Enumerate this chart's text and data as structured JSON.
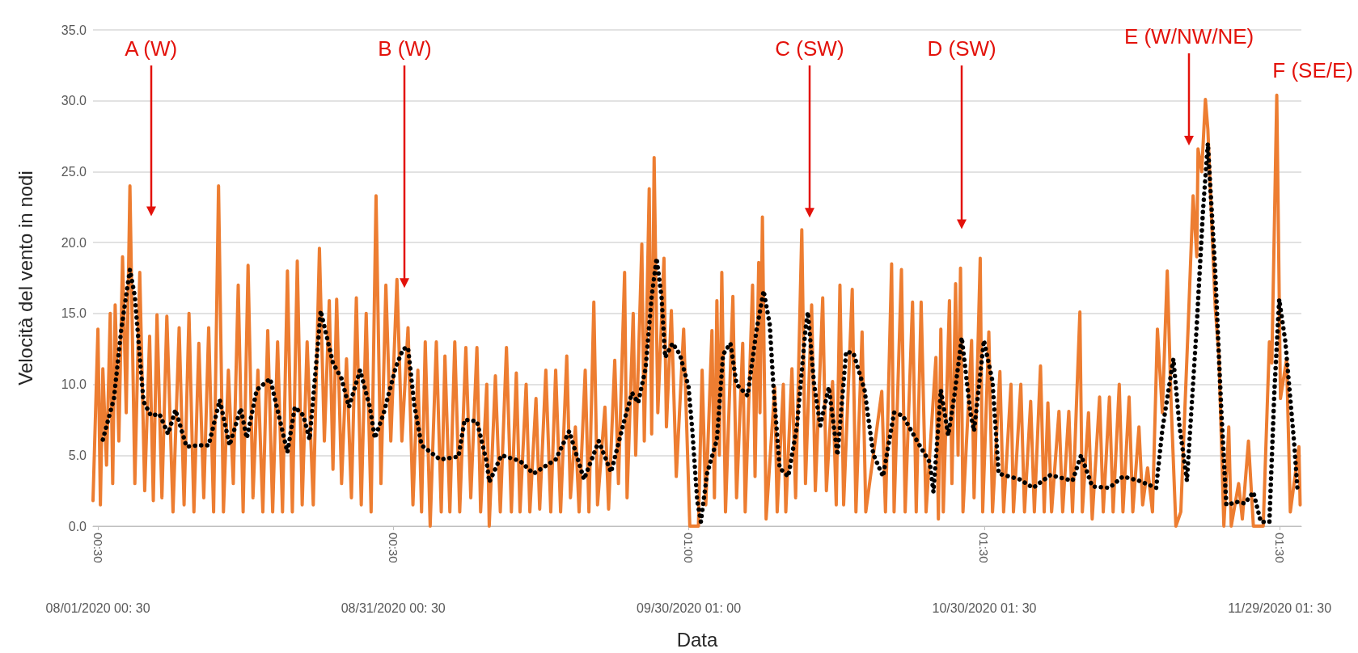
{
  "chart_data": {
    "type": "line",
    "xlabel": "Data",
    "ylabel": "Velocità del vento in nodi",
    "xlim": [
      "2020-07-31T12:30",
      "2020-12-01T06:30"
    ],
    "xticks": [
      {
        "value": "2020-08-01T00:30",
        "label": "00:30"
      },
      {
        "value": "2020-08-31T00:30",
        "label": "00:30"
      },
      {
        "value": "2020-09-30T01:00",
        "label": "01:00"
      },
      {
        "value": "2020-10-30T01:30",
        "label": "01:30"
      },
      {
        "value": "2020-11-29T01:30",
        "label": "01:30"
      }
    ],
    "x2lim": [
      "2020-07-31T12:30",
      "2020-12-01T06:30"
    ],
    "x2ticks": [
      {
        "value": "2020-08-01T00:30",
        "label": "08/01/2020 00: 30"
      },
      {
        "value": "2020-08-31T00:30",
        "label": "08/31/2020 00: 30"
      },
      {
        "value": "2020-09-30T01:00",
        "label": "09/30/2020 01: 00"
      },
      {
        "value": "2020-10-30T01:30",
        "label": "10/30/2020 01: 30"
      },
      {
        "value": "2020-11-29T01:30",
        "label": "11/29/2020 01: 30"
      }
    ],
    "ylim": [
      0,
      35
    ],
    "yticks": [
      {
        "value": 0,
        "label": "0.0"
      },
      {
        "value": 5,
        "label": "5.0"
      },
      {
        "value": 10,
        "label": "10.0"
      },
      {
        "value": 15,
        "label": "15.0"
      },
      {
        "value": 20,
        "label": "20.0"
      },
      {
        "value": 25,
        "label": "25.0"
      },
      {
        "value": 30,
        "label": "30.0"
      },
      {
        "value": 35,
        "label": "35.0"
      }
    ],
    "grid": "y",
    "marker": "none",
    "annotations": [
      "A (W)",
      "B (W)",
      "C (SW)",
      "D (SW)",
      "E (W/NW/NE)",
      "F (SE/E)"
    ],
    "series": [
      {
        "color": "#ed7d31",
        "line_style": "solid",
        "x": [
          "2020-07-31T12:30",
          "2020-08-01T00:30",
          "2020-08-01T06:30",
          "2020-08-01T12:30",
          "2020-08-01T21:30",
          "2020-08-02T06:30",
          "2020-08-02T12:30",
          "2020-08-02T18:30",
          "2020-08-03T03:30",
          "2020-08-03T12:30",
          "2020-08-03T21:30",
          "2020-08-04T06:30",
          "2020-08-04T18:30",
          "2020-08-05T06:30",
          "2020-08-05T18:30",
          "2020-08-06T06:30",
          "2020-08-06T15:30",
          "2020-08-07T00:30",
          "2020-08-07T12:30",
          "2020-08-08T00:30",
          "2020-08-08T15:30",
          "2020-08-09T06:30",
          "2020-08-09T18:30",
          "2020-08-10T06:30",
          "2020-08-10T18:30",
          "2020-08-11T06:30",
          "2020-08-11T18:30",
          "2020-08-12T06:30",
          "2020-08-12T18:30",
          "2020-08-13T06:30",
          "2020-08-13T18:30",
          "2020-08-14T06:30",
          "2020-08-14T18:30",
          "2020-08-15T06:30",
          "2020-08-15T18:30",
          "2020-08-16T06:30",
          "2020-08-16T18:30",
          "2020-08-17T06:30",
          "2020-08-17T18:30",
          "2020-08-18T06:30",
          "2020-08-18T18:30",
          "2020-08-19T06:30",
          "2020-08-19T18:30",
          "2020-08-20T06:30",
          "2020-08-20T18:30",
          "2020-08-21T06:30",
          "2020-08-21T18:30",
          "2020-08-22T06:30",
          "2020-08-22T21:30",
          "2020-08-23T12:30",
          "2020-08-24T00:30",
          "2020-08-24T12:30",
          "2020-08-24T21:30",
          "2020-08-25T06:30",
          "2020-08-25T18:30",
          "2020-08-26T06:30",
          "2020-08-26T18:30",
          "2020-08-27T06:30",
          "2020-08-27T18:30",
          "2020-08-28T06:30",
          "2020-08-28T18:30",
          "2020-08-29T06:30",
          "2020-08-29T18:30",
          "2020-08-30T06:30",
          "2020-08-30T18:30",
          "2020-08-31T09:30",
          "2020-08-31T21:30",
          "2020-09-01T12:30",
          "2020-09-02T00:30",
          "2020-09-02T12:30",
          "2020-09-02T21:30",
          "2020-09-03T06:30",
          "2020-09-03T18:30",
          "2020-09-04T09:30",
          "2020-09-04T21:30",
          "2020-09-05T06:30",
          "2020-09-05T18:30",
          "2020-09-06T06:30",
          "2020-09-06T18:30",
          "2020-09-07T09:30",
          "2020-09-07T21:30",
          "2020-09-08T12:30",
          "2020-09-08T21:30",
          "2020-09-09T12:30",
          "2020-09-09T18:30",
          "2020-09-10T09:30",
          "2020-09-10T21:30",
          "2020-09-11T12:30",
          "2020-09-12T00:30",
          "2020-09-12T12:30",
          "2020-09-12T21:30",
          "2020-09-13T12:30",
          "2020-09-13T21:30",
          "2020-09-14T12:30",
          "2020-09-14T21:30",
          "2020-09-15T12:30",
          "2020-09-16T00:30",
          "2020-09-16T12:30",
          "2020-09-17T00:30",
          "2020-09-17T15:30",
          "2020-09-18T00:30",
          "2020-09-18T12:30",
          "2020-09-18T21:30",
          "2020-09-19T12:30",
          "2020-09-19T21:30",
          "2020-09-20T09:30",
          "2020-09-20T18:30",
          "2020-09-21T12:30",
          "2020-09-21T21:30",
          "2020-09-22T12:30",
          "2020-09-22T21:30",
          "2020-09-23T12:30",
          "2020-09-23T18:30",
          "2020-09-24T09:30",
          "2020-09-24T15:30",
          "2020-09-25T06:30",
          "2020-09-25T12:30",
          "2020-09-26T00:30",
          "2020-09-26T06:30",
          "2020-09-26T12:30",
          "2020-09-26T21:30",
          "2020-09-27T12:30",
          "2020-09-27T18:30",
          "2020-09-28T06:30",
          "2020-09-28T18:30",
          "2020-09-29T12:30",
          "2020-09-30T03:30",
          "2020-10-01T00:30",
          "2020-10-01T09:30",
          "2020-10-01T18:30",
          "2020-10-02T09:30",
          "2020-10-02T15:30",
          "2020-10-02T21:30",
          "2020-10-03T03:30",
          "2020-10-03T09:30",
          "2020-10-03T18:30",
          "2020-10-04T12:30",
          "2020-10-04T21:30",
          "2020-10-05T12:30",
          "2020-10-05T18:30",
          "2020-10-06T12:30",
          "2020-10-06T18:30",
          "2020-10-07T03:30",
          "2020-10-07T06:30",
          "2020-10-07T12:30",
          "2020-10-07T21:30",
          "2020-10-08T18:30",
          "2020-10-09T00:30",
          "2020-10-09T15:30",
          "2020-10-09T21:30",
          "2020-10-10T12:30",
          "2020-10-10T21:30",
          "2020-10-11T12:30",
          "2020-10-11T21:30",
          "2020-10-12T12:30",
          "2020-10-12T21:30",
          "2020-10-13T15:30",
          "2020-10-14T00:30",
          "2020-10-14T15:30",
          "2020-10-15T00:30",
          "2020-10-15T09:30",
          "2020-10-15T18:30",
          "2020-10-16T15:30",
          "2020-10-17T00:30",
          "2020-10-17T15:30",
          "2020-10-18T00:30",
          "2020-10-19T15:30",
          "2020-10-20T00:30",
          "2020-10-20T15:30",
          "2020-10-20T21:30",
          "2020-10-21T15:30",
          "2020-10-22T00:30",
          "2020-10-22T18:30",
          "2020-10-23T03:30",
          "2020-10-23T15:30",
          "2020-10-24T03:30",
          "2020-10-25T03:30",
          "2020-10-25T09:30",
          "2020-10-25T15:30",
          "2020-10-25T21:30",
          "2020-10-26T12:30",
          "2020-10-26T18:30",
          "2020-10-27T03:30",
          "2020-10-27T09:30",
          "2020-10-27T15:30",
          "2020-10-27T21:30",
          "2020-10-28T18:30",
          "2020-10-29T00:30",
          "2020-10-29T15:30",
          "2020-10-29T21:30",
          "2020-10-30T12:30",
          "2020-10-30T21:30",
          "2020-10-31T15:30",
          "2020-11-01T00:30",
          "2020-11-01T18:30",
          "2020-11-02T00:30",
          "2020-11-02T18:30",
          "2020-11-03T03:30",
          "2020-11-03T18:30",
          "2020-11-04T03:30",
          "2020-11-04T18:30",
          "2020-11-05T03:30",
          "2020-11-05T12:30",
          "2020-11-05T21:30",
          "2020-11-06T15:30",
          "2020-11-07T00:30",
          "2020-11-07T15:30",
          "2020-11-08T00:30",
          "2020-11-08T18:30",
          "2020-11-09T00:30",
          "2020-11-09T15:30",
          "2020-11-10T00:30",
          "2020-11-10T18:30",
          "2020-11-11T03:30",
          "2020-11-11T18:30",
          "2020-11-12T03:30",
          "2020-11-12T18:30",
          "2020-11-13T03:30",
          "2020-11-13T18:30",
          "2020-11-14T03:30",
          "2020-11-14T18:30",
          "2020-11-15T03:30",
          "2020-11-15T15:30",
          "2020-11-16T03:30",
          "2020-11-16T15:30",
          "2020-11-17T03:30",
          "2020-11-17T15:30",
          "2020-11-18T00:30",
          "2020-11-18T12:30",
          "2020-11-19T00:30",
          "2020-11-19T18:30",
          "2020-11-20T06:30",
          "2020-11-20T15:30",
          "2020-11-20T18:30",
          "2020-11-21T03:30",
          "2020-11-21T12:30",
          "2020-11-21T18:30",
          "2020-11-22T12:30",
          "2020-11-22T21:30",
          "2020-11-23T09:30",
          "2020-11-23T21:30",
          "2020-11-24T03:30",
          "2020-11-24T21:30",
          "2020-11-25T06:30",
          "2020-11-25T21:30",
          "2020-11-26T09:30",
          "2020-11-27T09:30",
          "2020-11-28T00:30",
          "2020-11-28T06:30",
          "2020-11-28T18:30",
          "2020-11-29T03:30",
          "2020-11-29T18:30",
          "2020-11-30T03:30",
          "2020-12-01T00:30",
          "2020-12-01T03:30"
        ],
        "values": [
          1.8,
          13.9,
          1.5,
          11.1,
          4.3,
          15,
          3,
          15.6,
          6,
          19,
          8,
          24,
          3,
          17.9,
          2.5,
          13.4,
          1.8,
          14.9,
          2,
          14.8,
          1,
          14,
          1.5,
          15,
          1,
          12.9,
          2,
          14,
          1,
          24,
          1,
          11,
          3,
          17,
          1,
          18.4,
          2,
          11,
          1,
          13.8,
          1,
          13,
          1,
          18,
          1,
          18.7,
          1.5,
          13,
          1.5,
          19.6,
          6,
          15.9,
          4,
          16,
          3,
          11.8,
          2,
          16.1,
          1.5,
          15,
          1,
          23.3,
          3,
          17,
          6,
          17.4,
          6,
          14,
          1.5,
          11,
          1,
          13,
          0,
          13,
          1,
          12,
          1,
          13,
          1,
          12.6,
          2,
          12.6,
          1,
          10,
          0,
          10.6,
          1,
          12.6,
          1,
          10.8,
          1,
          10,
          1,
          9,
          1.2,
          11,
          1,
          11,
          1,
          12,
          2,
          7,
          1,
          11,
          1,
          15.8,
          1.5,
          8.4,
          1.2,
          11.7,
          3,
          17.9,
          2,
          15,
          5,
          19.9,
          6,
          23.8,
          6.5,
          26,
          8,
          18.9,
          7,
          15.2,
          3.5,
          13.9,
          0,
          0,
          11,
          1.5,
          13.8,
          2,
          15.9,
          5,
          17.9,
          1,
          16.2,
          2,
          12.9,
          1,
          17,
          3.5,
          18.6,
          8,
          21.8,
          0.5,
          9.8,
          1,
          10,
          1,
          11.1,
          2,
          20.9,
          3,
          15.6,
          2.5,
          16.1,
          2.5,
          10.2,
          1.5,
          17,
          1.5,
          16.7,
          1,
          13.7,
          1,
          9.5,
          1,
          18.5,
          1,
          18.1,
          1,
          15.8,
          1,
          15.8,
          1,
          11.9,
          0.5,
          13.9,
          1,
          15.9,
          3,
          17.1,
          5,
          18.2,
          1,
          13.1,
          2,
          18.9,
          1,
          13.7,
          1,
          10.9,
          1,
          10,
          1,
          10,
          1,
          8.8,
          1,
          11.3,
          1,
          8.7,
          1,
          8.1,
          1,
          8.1,
          1,
          15.1,
          1,
          8,
          0.5,
          9.1,
          1,
          9.1,
          1,
          10,
          1,
          9.1,
          1,
          7,
          1.5,
          4.1,
          1,
          13.9,
          8,
          18,
          9,
          0,
          1,
          14.1,
          23.3,
          19,
          26.6,
          25,
          30.1,
          28,
          15.4,
          12,
          0,
          7,
          0,
          3,
          0.5,
          6,
          0,
          0,
          13,
          11.5,
          30.4,
          9,
          11.8,
          1,
          5.6,
          1.5
        ]
      },
      {
        "color": "#000000",
        "line_style": "dotted",
        "x": [
          "2020-08-01T12:30",
          "2020-08-02T15:30",
          "2020-08-03T09:30",
          "2020-08-04T06:30",
          "2020-08-04T18:30",
          "2020-08-05T15:30",
          "2020-08-06T09:30",
          "2020-08-07T06:30",
          "2020-08-08T03:30",
          "2020-08-08T21:30",
          "2020-08-10T00:30",
          "2020-08-11T03:30",
          "2020-08-12T06:30",
          "2020-08-13T09:30",
          "2020-08-14T09:30",
          "2020-08-15T12:30",
          "2020-08-16T03:30",
          "2020-08-17T03:30",
          "2020-08-18T12:30",
          "2020-08-19T09:30",
          "2020-08-20T06:30",
          "2020-08-21T00:30",
          "2020-08-21T21:30",
          "2020-08-22T12:30",
          "2020-08-23T09:30",
          "2020-08-23T15:30",
          "2020-08-24T21:30",
          "2020-08-25T18:30",
          "2020-08-26T12:30",
          "2020-08-27T15:30",
          "2020-08-28T15:30",
          "2020-08-29T03:30",
          "2020-08-30T00:30",
          "2020-08-31T06:30",
          "2020-09-01T00:30",
          "2020-09-01T12:30",
          "2020-09-02T03:30",
          "2020-09-02T21:30",
          "2020-09-04T18:30",
          "2020-09-06T15:30",
          "2020-09-07T06:30",
          "2020-09-08T12:30",
          "2020-09-09T12:30",
          "2020-09-09T18:30",
          "2020-09-11T00:30",
          "2020-09-12T21:30",
          "2020-09-14T06:30",
          "2020-09-16T12:30",
          "2020-09-17T21:30",
          "2020-09-19T09:30",
          "2020-09-20T21:30",
          "2020-09-22T03:30",
          "2020-09-23T09:30",
          "2020-09-24T06:30",
          "2020-09-24T21:30",
          "2020-09-25T15:30",
          "2020-09-26T06:30",
          "2020-09-26T18:30",
          "2020-09-27T06:30",
          "2020-09-27T15:30",
          "2020-09-28T09:30",
          "2020-09-29T03:30",
          "2020-09-30T00:30",
          "2020-09-30T09:30",
          "2020-09-30T21:30",
          "2020-10-01T06:30",
          "2020-10-01T21:30",
          "2020-10-02T21:30",
          "2020-10-03T12:30",
          "2020-10-04T06:30",
          "2020-10-04T21:30",
          "2020-10-06T00:30",
          "2020-10-06T21:30",
          "2020-10-07T15:30",
          "2020-10-08T06:30",
          "2020-10-08T15:30",
          "2020-10-09T06:30",
          "2020-10-10T03:30",
          "2020-10-11T00:30",
          "2020-10-11T21:30",
          "2020-10-12T03:30",
          "2020-10-12T18:30",
          "2020-10-13T09:30",
          "2020-10-14T06:30",
          "2020-10-15T03:30",
          "2020-10-16T00:30",
          "2020-10-16T18:30",
          "2020-10-17T21:30",
          "2020-10-18T18:30",
          "2020-10-19T18:30",
          "2020-10-20T21:30",
          "2020-10-21T18:30",
          "2020-10-23T15:30",
          "2020-10-24T12:30",
          "2020-10-24T21:30",
          "2020-10-25T15:30",
          "2020-10-26T09:30",
          "2020-10-27T00:30",
          "2020-10-27T18:30",
          "2020-10-28T15:30",
          "2020-10-29T00:30",
          "2020-10-30T00:30",
          "2020-10-30T21:30",
          "2020-10-31T12:30",
          "2020-11-02T15:30",
          "2020-11-04T00:30",
          "2020-11-05T18:30",
          "2020-11-08T00:30",
          "2020-11-08T21:30",
          "2020-11-10T00:30",
          "2020-11-11T18:30",
          "2020-11-13T03:30",
          "2020-11-14T18:30",
          "2020-11-16T12:30",
          "2020-11-17T03:30",
          "2020-11-18T06:30",
          "2020-11-18T21:30",
          "2020-11-19T15:30",
          "2020-11-20T15:30",
          "2020-11-21T06:30",
          "2020-11-21T18:30",
          "2020-11-22T12:30",
          "2020-11-23T03:30",
          "2020-11-23T15:30",
          "2020-11-24T18:30",
          "2020-11-25T12:30",
          "2020-11-26T09:30",
          "2020-11-27T03:30",
          "2020-11-28T00:30",
          "2020-11-28T12:30",
          "2020-11-29T00:30",
          "2020-11-29T15:30",
          "2020-11-30T12:30",
          "2020-11-30T21:30"
        ],
        "values": [
          6.1,
          9,
          13.9,
          18.1,
          16.2,
          8.8,
          7.8,
          7.9,
          6.5,
          8.2,
          5.6,
          5.7,
          5.7,
          8.9,
          5.7,
          8.3,
          6.2,
          9.6,
          10.4,
          7.8,
          5.2,
          8.4,
          7.8,
          6.1,
          13.1,
          15.2,
          11.5,
          10.4,
          8.4,
          11,
          8.4,
          6.2,
          7.9,
          11.2,
          12.5,
          12.6,
          8.6,
          5.7,
          4.7,
          4.9,
          7.5,
          7.4,
          4.5,
          3.1,
          5,
          4.6,
          3.7,
          4.7,
          6.7,
          3.3,
          6,
          3.8,
          7.2,
          9.4,
          8.7,
          11.1,
          16.2,
          18.9,
          16.2,
          11.9,
          12.9,
          12.1,
          9.8,
          6.8,
          1.8,
          0.3,
          3.7,
          6.1,
          12.1,
          12.9,
          10,
          9.2,
          13.7,
          16.6,
          14.2,
          9.8,
          4.1,
          3.5,
          7,
          13.9,
          15.1,
          10,
          7.1,
          9.8,
          5,
          12.3,
          12.2,
          9.6,
          5.1,
          3.5,
          8,
          7.8,
          5.5,
          4.5,
          2.4,
          9.6,
          6.4,
          9.2,
          13.3,
          8,
          6.7,
          13.1,
          10.2,
          3.7,
          3.3,
          2.7,
          3.6,
          3.2,
          5,
          2.8,
          2.7,
          3.5,
          3.2,
          2.7,
          6.8,
          11.8,
          7,
          3.2,
          14.2,
          22.2,
          27,
          17.9,
          8,
          1.5,
          1.7,
          1.6,
          2.4,
          0.3,
          0.3,
          9.4,
          16,
          13,
          6,
          2.4
        ]
      }
    ]
  }
}
